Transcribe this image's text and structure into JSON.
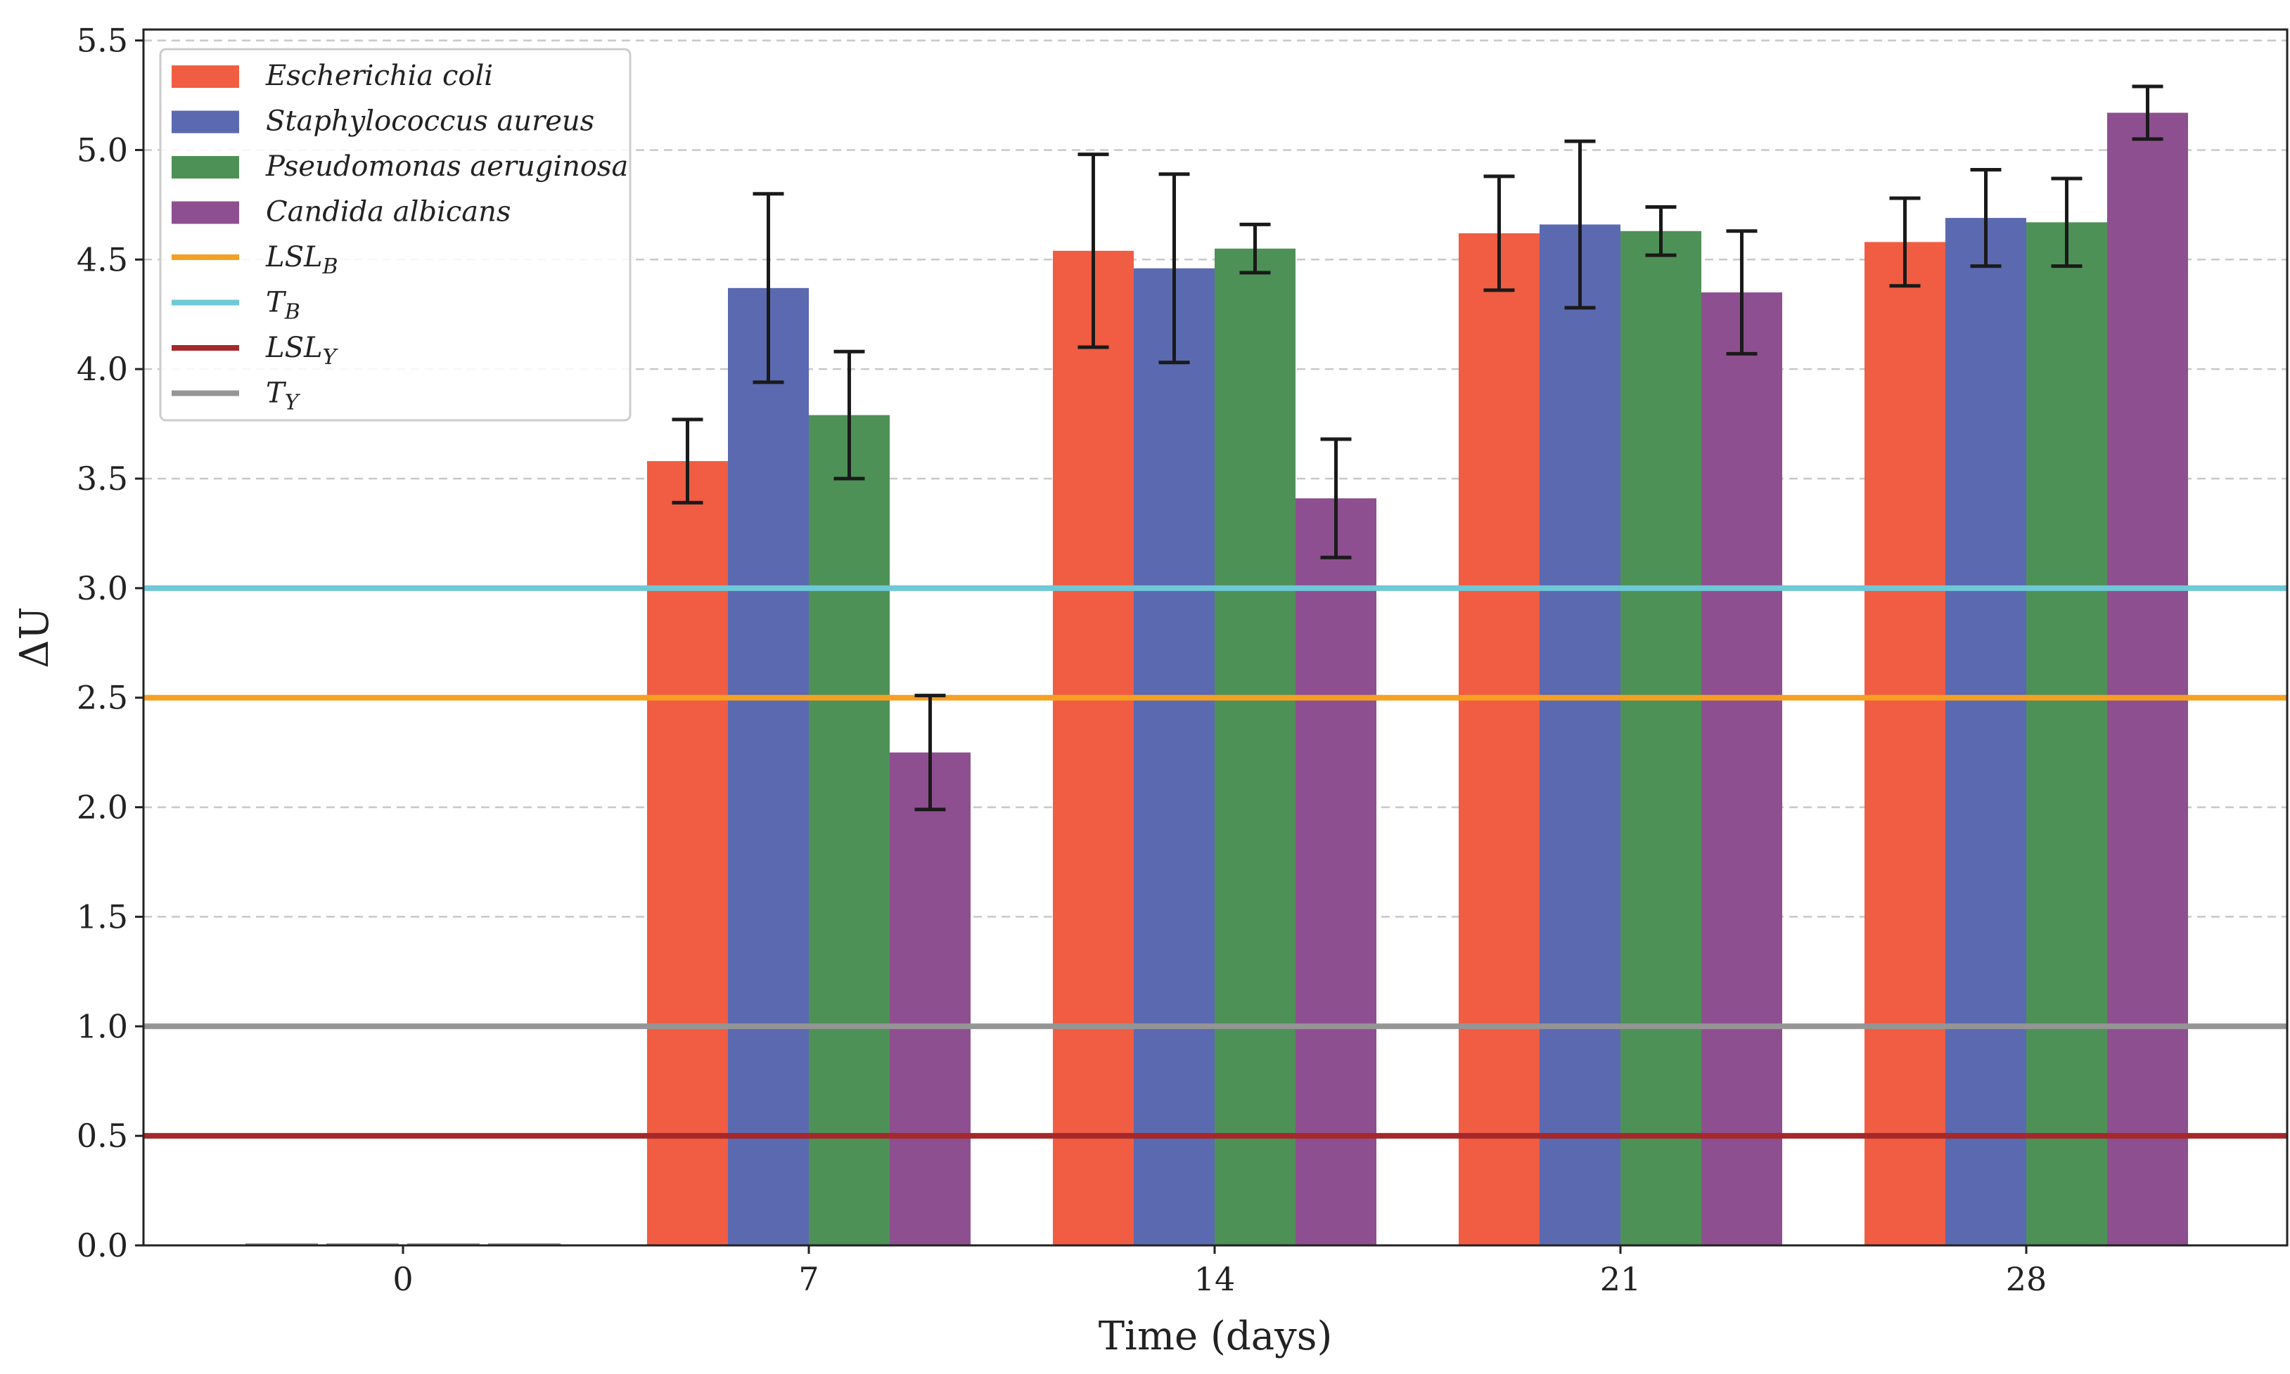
{
  "chart_data": {
    "type": "bar",
    "title": "",
    "xlabel": "Time (days)",
    "ylabel": "ΔU",
    "categories": [
      "0",
      "7",
      "14",
      "21",
      "28"
    ],
    "ylim": [
      0,
      5.55
    ],
    "yticks": [
      "0.0",
      "0.5",
      "1.0",
      "1.5",
      "2.0",
      "2.5",
      "3.0",
      "3.5",
      "4.0",
      "4.5",
      "5.0",
      "5.5"
    ],
    "grid": "horizontal dashed",
    "legend_position": "top-left",
    "series": [
      {
        "name": "Escherichia coli",
        "color": "#f05d42",
        "values": [
          0,
          3.58,
          4.54,
          4.62,
          4.58
        ],
        "errors": [
          0,
          0.19,
          0.44,
          0.26,
          0.2
        ]
      },
      {
        "name": "Staphylococcus aureus",
        "color": "#5b69b0",
        "values": [
          0,
          4.37,
          4.46,
          4.66,
          4.69
        ],
        "errors": [
          0,
          0.43,
          0.43,
          0.38,
          0.22
        ]
      },
      {
        "name": "Pseudomonas aeruginosa",
        "color": "#4e9157",
        "values": [
          0,
          3.79,
          4.55,
          4.63,
          4.67
        ],
        "errors": [
          0,
          0.29,
          0.11,
          0.11,
          0.2
        ]
      },
      {
        "name": "Candida albicans",
        "color": "#8e4f90",
        "values": [
          0,
          2.25,
          3.41,
          4.35,
          5.17
        ],
        "errors": [
          0,
          0.26,
          0.27,
          0.28,
          0.12
        ]
      }
    ],
    "reference_lines": [
      {
        "name": "LSL",
        "sub": "B",
        "value": 2.5,
        "color": "#f5a023"
      },
      {
        "name": "T",
        "sub": "B",
        "value": 3.0,
        "color": "#6ec8d6"
      },
      {
        "name": "LSL",
        "sub": "Y",
        "value": 0.5,
        "color": "#a5282b"
      },
      {
        "name": "T",
        "sub": "Y",
        "value": 1.0,
        "color": "#959595"
      }
    ]
  }
}
